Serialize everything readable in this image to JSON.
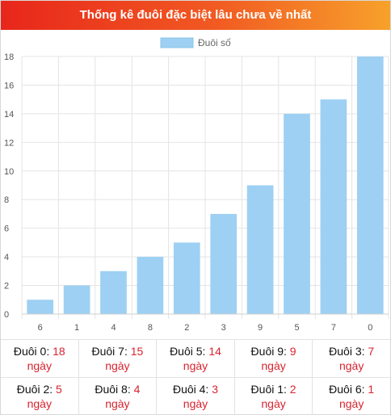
{
  "title": "Thống kê đuôi đặc biệt lâu chưa về nhất",
  "colors": {
    "bar": "#9dd0f3",
    "accent_red": "#d9232e"
  },
  "chart_data": {
    "type": "bar",
    "categories": [
      "6",
      "1",
      "4",
      "8",
      "2",
      "3",
      "9",
      "5",
      "7",
      "0"
    ],
    "series": [
      {
        "name": "Đuôi số",
        "values": [
          1,
          2,
          3,
          4,
          5,
          7,
          9,
          14,
          15,
          18
        ]
      }
    ],
    "xlabel": "",
    "ylabel": "",
    "ylim": [
      0,
      18
    ],
    "yticks": [
      0,
      2,
      4,
      6,
      8,
      10,
      12,
      14,
      16,
      18
    ],
    "grid": true,
    "legend": "top-center"
  },
  "stats": [
    [
      {
        "label": "Đuôi 0:",
        "value": "18",
        "unit": "ngày"
      },
      {
        "label": "Đuôi 7:",
        "value": "15",
        "unit": "ngày"
      },
      {
        "label": "Đuôi 5:",
        "value": "14",
        "unit": "ngày"
      },
      {
        "label": "Đuôi 9:",
        "value": "9",
        "unit": "ngày"
      },
      {
        "label": "Đuôi 3:",
        "value": "7",
        "unit": "ngày"
      }
    ],
    [
      {
        "label": "Đuôi 2:",
        "value": "5",
        "unit": "ngày"
      },
      {
        "label": "Đuôi 8:",
        "value": "4",
        "unit": "ngày"
      },
      {
        "label": "Đuôi 4:",
        "value": "3",
        "unit": "ngày"
      },
      {
        "label": "Đuôi 1:",
        "value": "2",
        "unit": "ngày"
      },
      {
        "label": "Đuôi 6:",
        "value": "1",
        "unit": "ngày"
      }
    ]
  ]
}
